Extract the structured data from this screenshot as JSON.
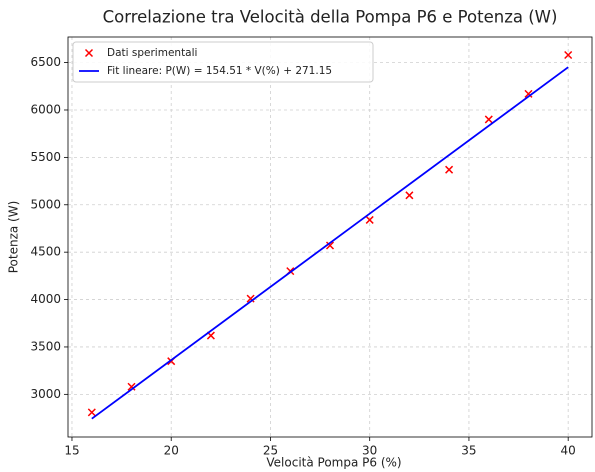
{
  "chart_data": {
    "type": "scatter",
    "title": "Correlazione tra Velocità della Pompa P6 e Potenza (W)",
    "xlabel": "Velocità Pompa P6 (%)",
    "ylabel": "Potenza (W)",
    "xlim": [
      14.8,
      41.2
    ],
    "ylim": [
      2550,
      6770
    ],
    "xticks": [
      15,
      20,
      25,
      30,
      35,
      40
    ],
    "yticks": [
      3000,
      3500,
      4000,
      4500,
      5000,
      5500,
      6000,
      6500
    ],
    "grid": true,
    "legend": "upper left",
    "series": [
      {
        "name": "Dati sperimentali",
        "color": "#ff0000",
        "type": "scatter",
        "x": [
          16,
          18,
          20,
          22,
          24,
          26,
          28,
          30,
          32,
          34,
          36,
          38,
          40
        ],
        "values": [
          2810,
          3080,
          3350,
          3620,
          4010,
          4300,
          4570,
          4840,
          5100,
          5370,
          5900,
          6170,
          6580
        ]
      },
      {
        "name": "Fit lineare: P(W) = 154.51 * V(%) + 271.15",
        "color": "#0000ff",
        "type": "line",
        "x": [
          16,
          40
        ],
        "values": [
          2743.31,
          6451.55
        ]
      }
    ]
  }
}
